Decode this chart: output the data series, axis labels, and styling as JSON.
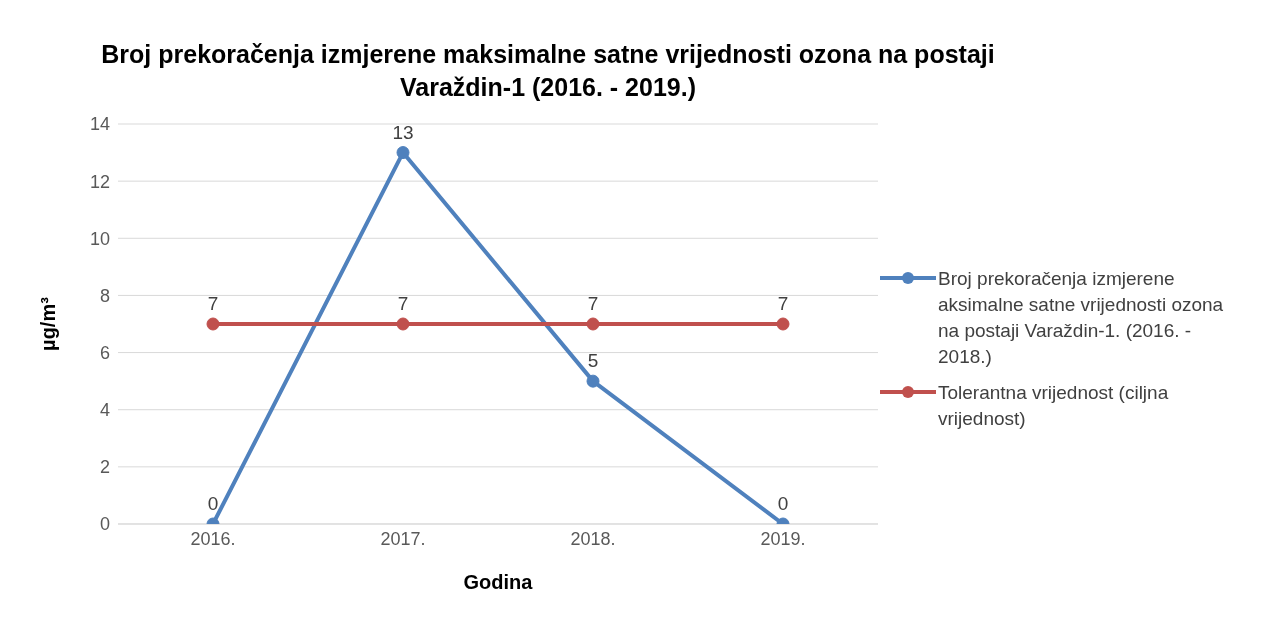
{
  "chart_data": {
    "type": "line",
    "title": "Broj prekoračenja izmjerene maksimalne satne vrijednosti ozona na postaji Varaždin-1 (2016. - 2019.)",
    "xlabel": "Godina",
    "ylabel": "µg/m³",
    "categories": [
      "2016.",
      "2017.",
      "2018.",
      "2019."
    ],
    "series": [
      {
        "name": "Broj prekoračenja izmjerene aksimalne satne vrijednosti ozona na postaji Varaždin-1. (2016. - 2018.)",
        "color": "#4f81bd",
        "values": [
          0,
          13,
          5,
          0
        ]
      },
      {
        "name": "Tolerantna vrijednost (ciljna vrijednost)",
        "color": "#c0504d",
        "values": [
          7,
          7,
          7,
          7
        ]
      }
    ],
    "ylim": [
      0,
      14
    ],
    "yticks": [
      0,
      2,
      4,
      6,
      8,
      10,
      12,
      14
    ],
    "grid": "y",
    "legend": "right",
    "marker": "circle",
    "line_style": "solid",
    "data_labels": true
  }
}
